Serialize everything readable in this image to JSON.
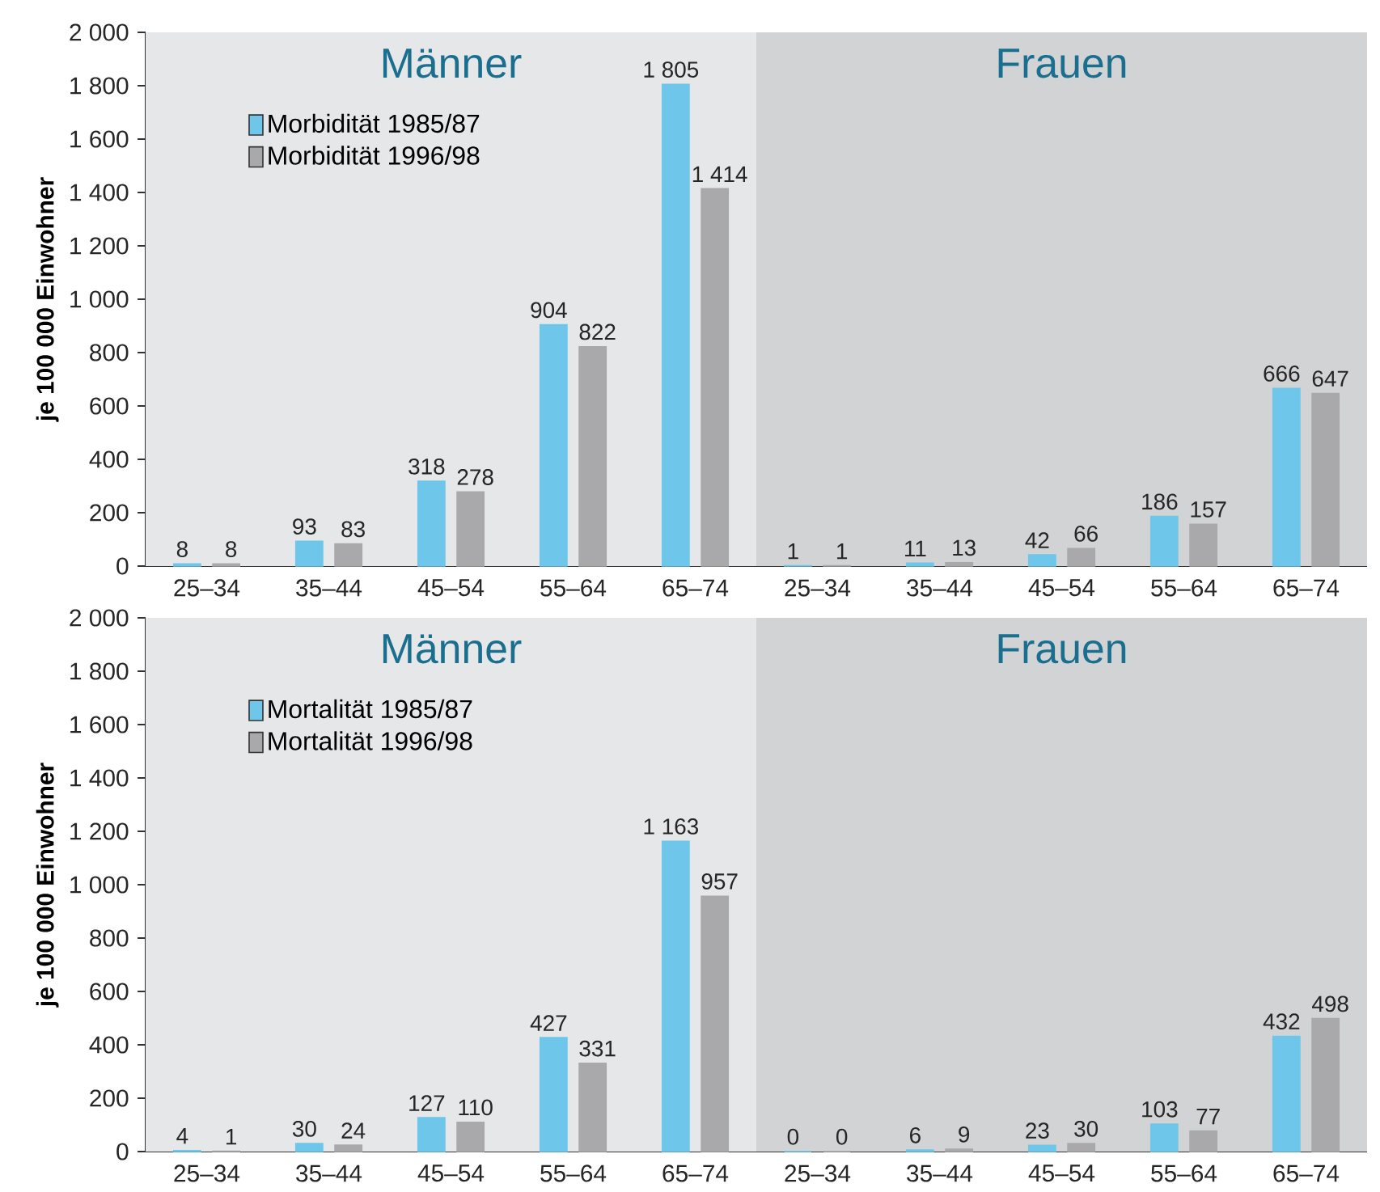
{
  "chart_data": [
    {
      "type": "bar",
      "ylabel": "je 100 000 Einwohner",
      "categories": [
        "25–34",
        "35–44",
        "45–54",
        "55–64",
        "65–74",
        "25–34",
        "35–44",
        "45–54",
        "55–64",
        "65–74"
      ],
      "series": [
        {
          "name": "Morbidität 1985/87",
          "color": "#6ec6ea",
          "values": [
            8,
            93,
            318,
            904,
            1805,
            1,
            11,
            42,
            186,
            666
          ],
          "value_labels": [
            "8",
            "93",
            "318",
            "904",
            "1 805",
            "1",
            "11",
            "42",
            "186",
            "666"
          ]
        },
        {
          "name": "Morbidität 1996/98",
          "color": "#a9a9ab",
          "values": [
            8,
            83,
            278,
            822,
            1414,
            1,
            13,
            66,
            157,
            647
          ],
          "value_labels": [
            "8",
            "83",
            "278",
            "822",
            "1 414",
            "1",
            "13",
            "66",
            "157",
            "647"
          ]
        }
      ],
      "ylim": [
        0,
        2000
      ],
      "yticks": [
        0,
        200,
        400,
        600,
        800,
        {
          "value": 1000,
          "label": "1 000"
        },
        {
          "value": 1200,
          "label": "1 200"
        },
        {
          "value": 1400,
          "label": "1 400"
        },
        {
          "value": 1600,
          "label": "1 600"
        },
        {
          "value": 1800,
          "label": "1 800"
        },
        {
          "value": 2000,
          "label": "2 000"
        }
      ],
      "annotations": [
        "Männer",
        "Frauen"
      ],
      "legend": "top left",
      "grid": false
    },
    {
      "type": "bar",
      "ylabel": "je 100 000 Einwohner",
      "categories": [
        "25–34",
        "35–44",
        "45–54",
        "55–64",
        "65–74",
        "25–34",
        "35–44",
        "45–54",
        "55–64",
        "65–74"
      ],
      "series": [
        {
          "name": "Mortalität 1985/87",
          "color": "#6ec6ea",
          "values": [
            4,
            30,
            127,
            427,
            1163,
            0,
            6,
            23,
            103,
            432
          ],
          "value_labels": [
            "4",
            "30",
            "127",
            "427",
            "1 163",
            "0",
            "6",
            "23",
            "103",
            "432"
          ]
        },
        {
          "name": "Mortalität 1996/98",
          "color": "#a9a9ab",
          "values": [
            1,
            24,
            110,
            331,
            957,
            0,
            9,
            30,
            77,
            498
          ],
          "value_labels": [
            "1",
            "24",
            "110",
            "331",
            "957",
            "0",
            "9",
            "30",
            "77",
            "498"
          ]
        }
      ],
      "ylim": [
        0,
        2000
      ],
      "yticks": [
        0,
        200,
        400,
        600,
        800,
        {
          "value": 1000,
          "label": "1 000"
        },
        {
          "value": 1200,
          "label": "1 200"
        },
        {
          "value": 1400,
          "label": "1 400"
        },
        {
          "value": 1600,
          "label": "1 600"
        },
        {
          "value": 1800,
          "label": "1 800"
        },
        {
          "value": 2000,
          "label": "2 000"
        }
      ],
      "annotations": [
        "Männer",
        "Frauen"
      ],
      "legend": "top left",
      "grid": false
    }
  ]
}
